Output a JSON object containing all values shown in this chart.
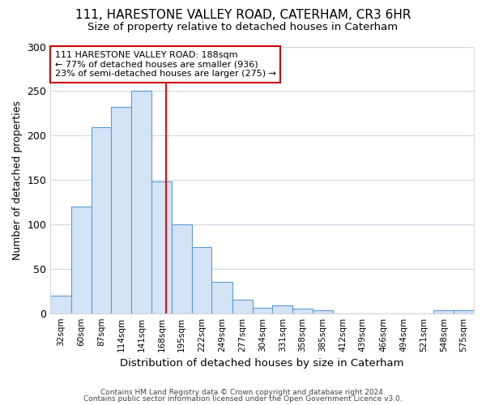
{
  "title1": "111, HARESTONE VALLEY ROAD, CATERHAM, CR3 6HR",
  "title2": "Size of property relative to detached houses in Caterham",
  "xlabel": "Distribution of detached houses by size in Caterham",
  "ylabel": "Number of detached properties",
  "bin_labels": [
    "32sqm",
    "60sqm",
    "87sqm",
    "114sqm",
    "141sqm",
    "168sqm",
    "195sqm",
    "222sqm",
    "249sqm",
    "277sqm",
    "304sqm",
    "331sqm",
    "358sqm",
    "385sqm",
    "412sqm",
    "439sqm",
    "466sqm",
    "494sqm",
    "521sqm",
    "548sqm",
    "575sqm"
  ],
  "bin_edges": [
    32,
    60,
    87,
    114,
    141,
    168,
    195,
    222,
    249,
    277,
    304,
    331,
    358,
    385,
    412,
    439,
    466,
    494,
    521,
    548,
    575,
    602
  ],
  "bar_heights": [
    20,
    120,
    209,
    232,
    250,
    148,
    100,
    74,
    35,
    15,
    6,
    9,
    5,
    3,
    0,
    0,
    0,
    0,
    0,
    3,
    3
  ],
  "bar_color": "#d4e4f7",
  "bar_edge_color": "#5b9bd5",
  "property_size": 188,
  "vline_color": "#ff0000",
  "annotation_line1": "111 HARESTONE VALLEY ROAD: 188sqm",
  "annotation_line2": "← 77% of detached houses are smaller (936)",
  "annotation_line3": "23% of semi-detached houses are larger (275) →",
  "annotation_box_color": "#ffffff",
  "annotation_box_edge": "#cc0000",
  "ylim": [
    0,
    300
  ],
  "yticks": [
    0,
    50,
    100,
    150,
    200,
    250,
    300
  ],
  "footer1": "Contains HM Land Registry data © Crown copyright and database right 2024.",
  "footer2": "Contains public sector information licensed under the Open Government Licence v3.0.",
  "bg_color": "#ffffff",
  "plot_bg_color": "#ffffff",
  "grid_color": "#d0d8e4",
  "title1_fontsize": 11,
  "title2_fontsize": 9.5,
  "ylabel_fontsize": 9,
  "xlabel_fontsize": 9.5
}
